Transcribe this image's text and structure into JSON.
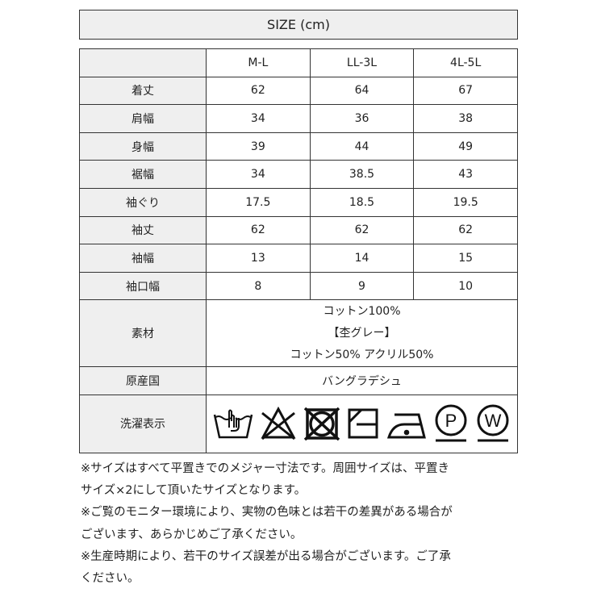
{
  "title": "SIZE (cm)",
  "columns": [
    "M-L",
    "LL-3L",
    "4L-5L"
  ],
  "rows": [
    {
      "label": "着丈",
      "values": [
        "62",
        "64",
        "67"
      ]
    },
    {
      "label": "肩幅",
      "values": [
        "34",
        "36",
        "38"
      ]
    },
    {
      "label": "身幅",
      "values": [
        "39",
        "44",
        "49"
      ]
    },
    {
      "label": "裾幅",
      "values": [
        "34",
        "38.5",
        "43"
      ]
    },
    {
      "label": "袖ぐり",
      "values": [
        "17.5",
        "18.5",
        "19.5"
      ]
    },
    {
      "label": "袖丈",
      "values": [
        "62",
        "62",
        "62"
      ]
    },
    {
      "label": "袖幅",
      "values": [
        "13",
        "14",
        "15"
      ]
    },
    {
      "label": "袖口幅",
      "values": [
        "8",
        "9",
        "10"
      ]
    }
  ],
  "material": {
    "label": "素材",
    "lines": [
      "コットン100%",
      "【杢グレー】",
      "コットン50% アクリル50%"
    ]
  },
  "origin": {
    "label": "原産国",
    "value": "バングラデシュ"
  },
  "care": {
    "label": "洗濯表示",
    "icons": [
      "hand-wash-icon",
      "no-bleach-icon",
      "no-tumble-dry-icon",
      "line-dry-shade-icon",
      "iron-low-icon",
      "dry-clean-p-icon",
      "wet-clean-w-icon"
    ],
    "letters": {
      "p": "P",
      "w": "W"
    }
  },
  "notes": [
    "※サイズはすべて平置きでのメジャー寸法です。周囲サイズは、平置き",
    "サイズ×2にして頂いたサイズとなります。",
    "※ご覧のモニター環境により、実物の色味とは若干の差異がある場合が",
    "ございます、あらかじめご了承ください。",
    "※生産時期により、若干のサイズ誤差が出る場合がございます。ご了承",
    "ください。"
  ]
}
